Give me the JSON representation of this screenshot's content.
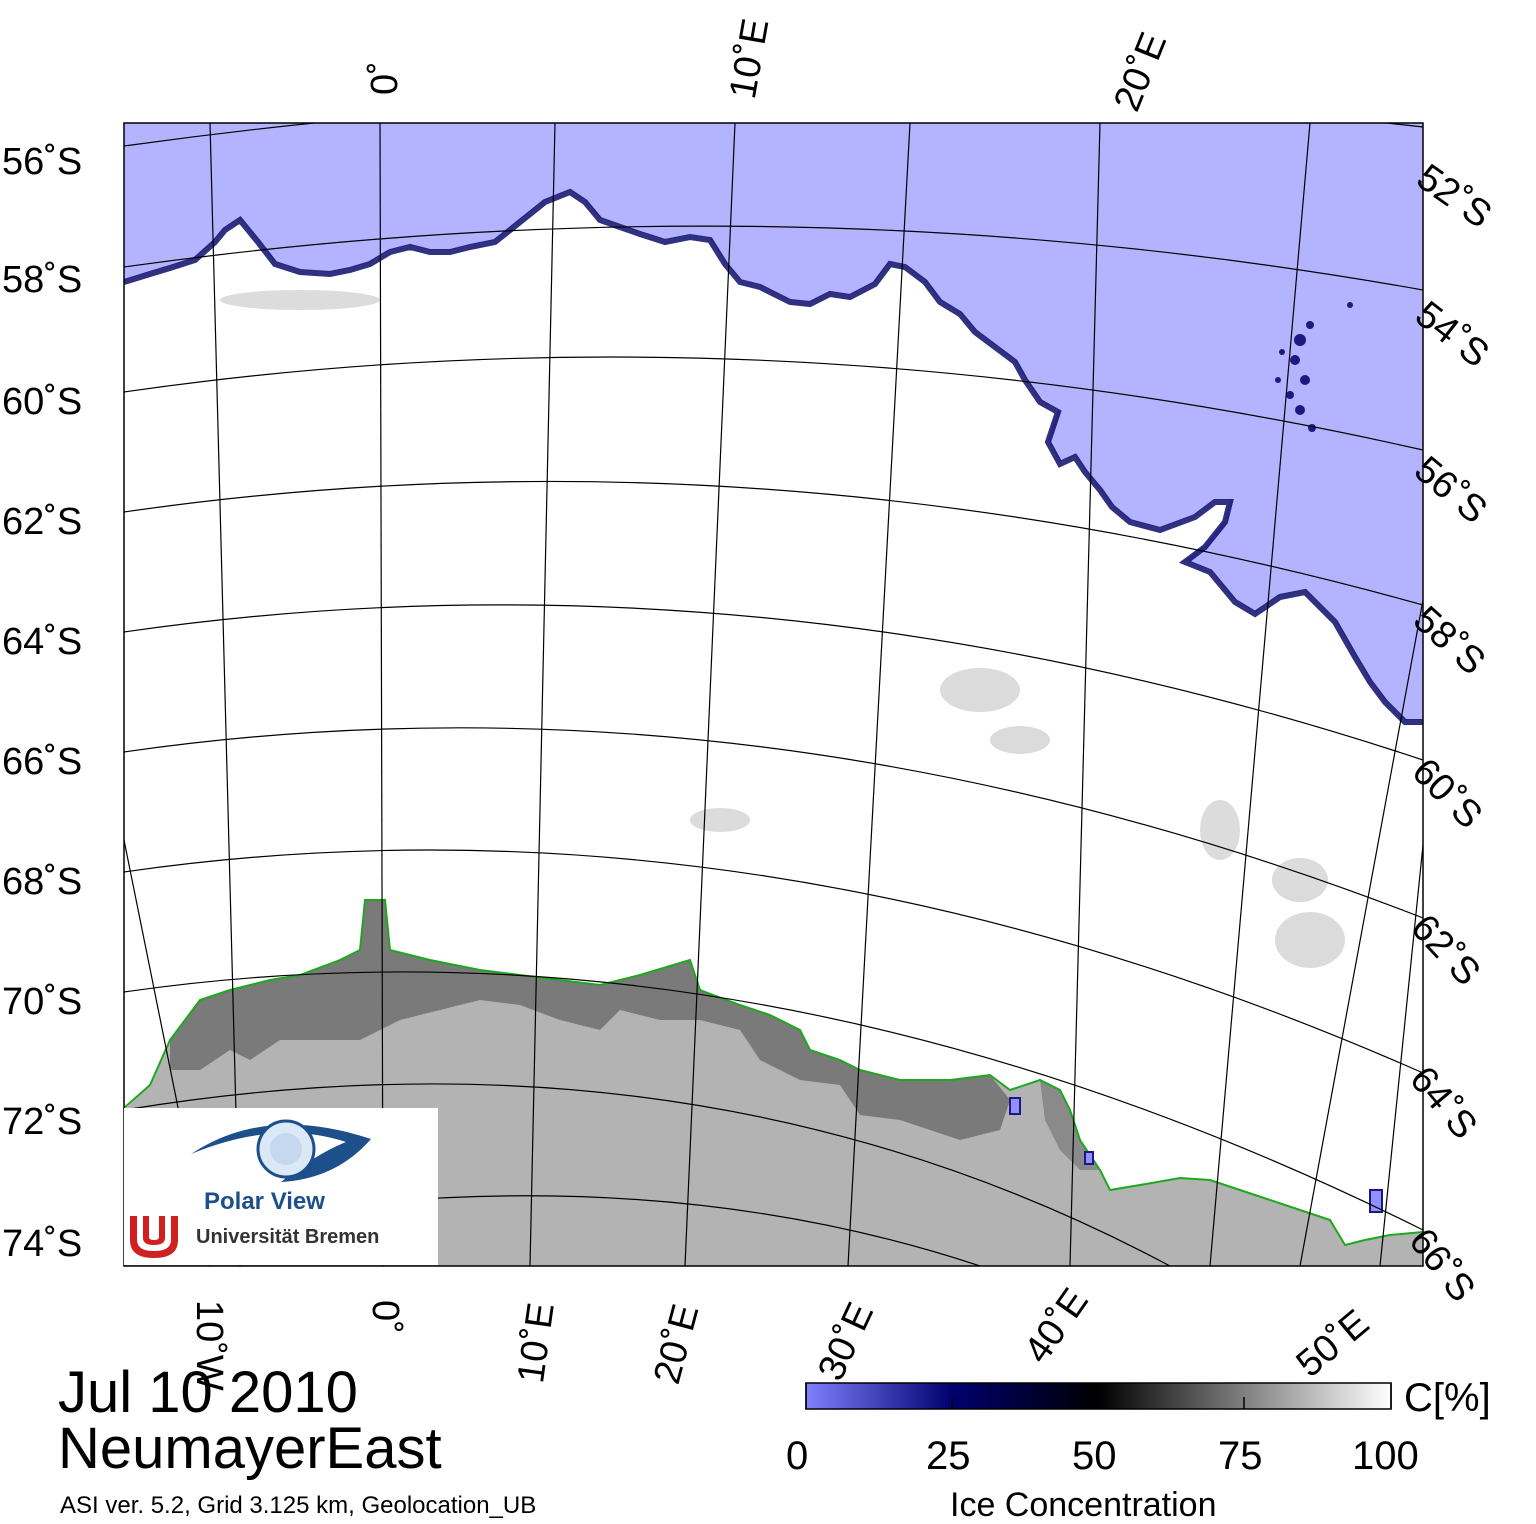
{
  "map": {
    "colors": {
      "open_water": "#b3b3ff",
      "ice_full": "#ffffff",
      "land_ice_shelf": "#787878",
      "land_continent": "#b3b3b3",
      "coastline": "#1ea81e",
      "ice_edge": "#0d0d6b",
      "graticule": "#000000"
    },
    "lat_labels_left": [
      "56˚S",
      "58˚S",
      "60˚S",
      "62˚S",
      "64˚S",
      "66˚S",
      "68˚S",
      "70˚S",
      "72˚S",
      "74˚S"
    ],
    "lat_labels_right": [
      "52˚S",
      "54˚S",
      "56˚S",
      "58˚S",
      "60˚S",
      "62˚S",
      "64˚S",
      "66˚S"
    ],
    "lon_labels_top": [
      "0˚",
      "10˚E",
      "20˚E"
    ],
    "lon_labels_bottom": [
      "10˚W",
      "0˚",
      "10˚E",
      "20˚E",
      "30˚E",
      "40˚E",
      "50˚E"
    ]
  },
  "logo": {
    "name": "Polar View",
    "org": "Universität Bremen"
  },
  "info": {
    "date": "Jul 10 2010",
    "region": "NeumayerEast",
    "footer": "ASI ver. 5.2,  Grid 3.125 km, Geolocation_UB"
  },
  "colorbar": {
    "unit": "C[%]",
    "title": "Ice Concentration",
    "ticks": [
      "0",
      "25",
      "50",
      "75",
      "100"
    ],
    "stops": [
      "#8080ff",
      "#00006e",
      "#000000",
      "#808080",
      "#ffffff"
    ]
  }
}
